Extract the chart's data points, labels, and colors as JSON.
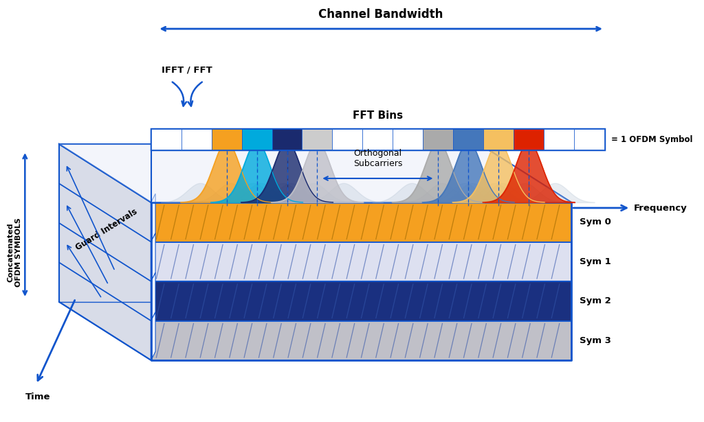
{
  "bg_color": "#ffffff",
  "blue": "#1155cc",
  "blue_dark": "#1a3080",
  "orange": "#f5a020",
  "cyan": "#00aadd",
  "navy": "#1a2a6e",
  "gray_light": "#cccccc",
  "gray_med": "#aaaaaa",
  "red_color": "#dd2200",
  "steelblue": "#4477bb",
  "tan": "#f5c060",
  "sym_colors": [
    "#f5a020",
    "#dde0f0",
    "#1a3080",
    "#c0c0c8"
  ],
  "sym_labels": [
    "Sym 0",
    "Sym 1",
    "Sym 2",
    "Sym 3"
  ],
  "bin_colors": [
    "white",
    "white",
    "#f5a020",
    "#00aadd",
    "#1a2a6e",
    "#cccccc",
    "white",
    "white",
    "white",
    "#aaaaaa",
    "#4477bb",
    "#f5c060",
    "#dd2200",
    "white",
    "white"
  ],
  "group1_colors": [
    "#f5a020",
    "#00aadd",
    "#1a2a6e",
    "#c0c0c8"
  ],
  "group2_colors": [
    "#aaaaaa",
    "#4477bb",
    "#f5c060",
    "#dd2200"
  ]
}
